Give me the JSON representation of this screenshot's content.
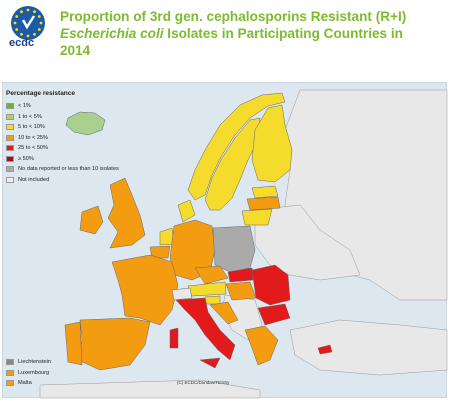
{
  "header": {
    "logo_text": "ecdc",
    "title_line1": "Proportion of 3rd gen. cephalosporins Resistant (R+I)",
    "title_italic": "Escherichia coli",
    "title_line2_rest": " Isolates in Participating Countries in",
    "title_line3": "2014"
  },
  "legend": {
    "title": "Percentage resistance",
    "items": [
      {
        "label": "< 1%",
        "color": "#6ab42d"
      },
      {
        "label": "1 to < 5%",
        "color": "#b4d264"
      },
      {
        "label": "5 to < 10%",
        "color": "#f5dc2c"
      },
      {
        "label": "10 to < 25%",
        "color": "#f39c12"
      },
      {
        "label": "25 to < 50%",
        "color": "#e31a1c"
      },
      {
        "label": "≥ 50%",
        "color": "#a50f15"
      },
      {
        "label": "No data reported or less than 10 isolates",
        "color": "#aaaaaa"
      },
      {
        "label": "Not included",
        "color": "#eeeeee"
      }
    ]
  },
  "small_states": [
    {
      "label": "Liechtenstein",
      "color": "#888888"
    },
    {
      "label": "Luxembourg",
      "color": "#f39c12"
    },
    {
      "label": "Malta",
      "color": "#f39c12"
    }
  ],
  "credit": "(C) ECDC/Dundas/TESSy",
  "colors": {
    "green_light": "#a9d08e",
    "yellow": "#f5dc2c",
    "orange": "#f39c12",
    "red": "#e31a1c",
    "gray": "#aaaaaa",
    "not_included": "#e8e8e8",
    "sea": "#dce7f0"
  }
}
